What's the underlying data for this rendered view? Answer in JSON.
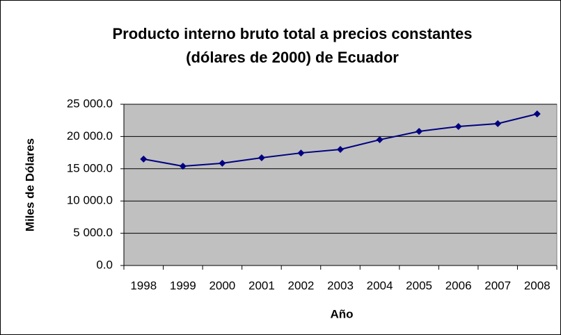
{
  "chart_data": {
    "type": "line",
    "title": [
      "Producto interno bruto total a precios constantes",
      "(dólares de 2000) de Ecuador"
    ],
    "x_label": "Año",
    "y_label": "Miles de Dólares",
    "categories": [
      "1998",
      "1999",
      "2000",
      "2001",
      "2002",
      "2003",
      "2004",
      "2005",
      "2006",
      "2007",
      "2008"
    ],
    "values": [
      16500,
      15400,
      15850,
      16700,
      17450,
      18000,
      19500,
      20800,
      21550,
      22000,
      23500
    ],
    "color": "#000080",
    "ylim": [
      0,
      25000
    ],
    "yticks": [
      {
        "value": 0,
        "label": "0.0"
      },
      {
        "value": 5000,
        "label": "5 000.0"
      },
      {
        "value": 10000,
        "label": "10 000.0"
      },
      {
        "value": 15000,
        "label": "15 000.0"
      },
      {
        "value": 20000,
        "label": "20 000.0"
      },
      {
        "value": 25000,
        "label": "25 000.0"
      }
    ],
    "grid": true
  }
}
